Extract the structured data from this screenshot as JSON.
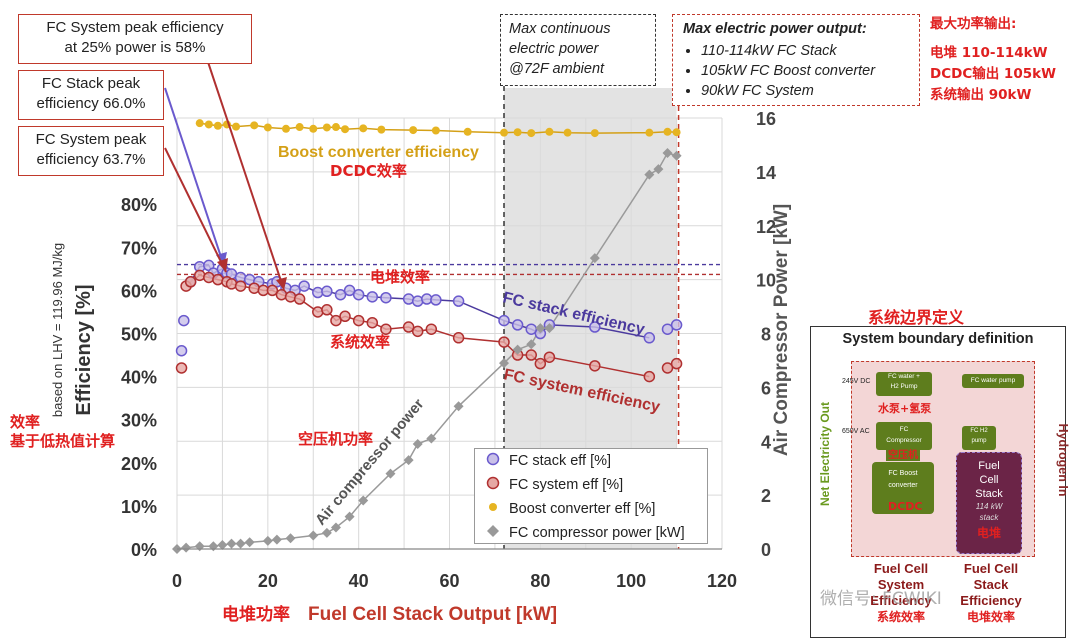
{
  "chart_data": {
    "type": "scatter",
    "xlabel": "Fuel Cell Stack Output [kW]",
    "xlabel_cn": "电堆功率",
    "ylabel_left": "Efficiency [%]",
    "ylabel_left_sub": "based on LHV = 119.96 MJ/kg",
    "ylabel_right": "Air Compressor Power [kW]",
    "xlim": [
      0,
      120
    ],
    "ylim_left": [
      0,
      100
    ],
    "ylim_right": [
      0,
      16
    ],
    "x_ticks": [
      "0",
      "20",
      "40",
      "60",
      "80",
      "100",
      "120"
    ],
    "y_left_ticks": [
      "0%",
      "10%",
      "20%",
      "30%",
      "40%",
      "50%",
      "60%",
      "70%",
      "80%"
    ],
    "y_right_ticks": [
      "0",
      "2",
      "4",
      "6",
      "8",
      "10",
      "12",
      "14",
      "16"
    ],
    "shaded_region": [
      72,
      110
    ],
    "reference_lines": [
      {
        "label": "FC Stack peak efficiency",
        "value": 66.0
      },
      {
        "label": "FC System peak efficiency",
        "value": 63.7
      }
    ],
    "series": [
      {
        "name": "FC stack eff [%]",
        "color": "#8e7cc3",
        "marker": "circle",
        "points": [
          [
            1,
            46
          ],
          [
            1.5,
            53
          ],
          [
            3,
            62
          ],
          [
            5,
            65.5
          ],
          [
            7,
            65.8
          ],
          [
            8,
            64
          ],
          [
            10,
            65
          ],
          [
            11,
            64
          ],
          [
            12,
            63.8
          ],
          [
            14,
            63
          ],
          [
            16,
            62.5
          ],
          [
            18,
            62
          ],
          [
            21,
            61.5
          ],
          [
            22,
            62
          ],
          [
            24,
            60.5
          ],
          [
            26,
            60
          ],
          [
            28,
            61
          ],
          [
            31,
            59.5
          ],
          [
            33,
            59.8
          ],
          [
            36,
            59
          ],
          [
            38,
            60
          ],
          [
            40,
            59
          ],
          [
            43,
            58.5
          ],
          [
            46,
            58.3
          ],
          [
            51,
            58
          ],
          [
            53,
            57.5
          ],
          [
            55,
            58
          ],
          [
            57,
            57.8
          ],
          [
            62,
            57.5
          ],
          [
            72,
            53
          ],
          [
            75,
            52
          ],
          [
            78,
            51
          ],
          [
            80,
            50
          ],
          [
            82,
            52
          ],
          [
            92,
            51.5
          ],
          [
            104,
            49
          ],
          [
            108,
            51
          ],
          [
            110,
            52
          ]
        ]
      },
      {
        "name": "FC system eff [%]",
        "color": "#c0504d",
        "marker": "circle",
        "points": [
          [
            1,
            42
          ],
          [
            2,
            61
          ],
          [
            3,
            62
          ],
          [
            5,
            63.5
          ],
          [
            7,
            63
          ],
          [
            9,
            62.5
          ],
          [
            11,
            62
          ],
          [
            12,
            61.5
          ],
          [
            14,
            61
          ],
          [
            17,
            60.5
          ],
          [
            19,
            60
          ],
          [
            21,
            60
          ],
          [
            23,
            59
          ],
          [
            25,
            58.5
          ],
          [
            27,
            58
          ],
          [
            31,
            55
          ],
          [
            33,
            55.5
          ],
          [
            35,
            53
          ],
          [
            37,
            54
          ],
          [
            40,
            53
          ],
          [
            43,
            52.5
          ],
          [
            46,
            51
          ],
          [
            51,
            51.5
          ],
          [
            53,
            50.5
          ],
          [
            56,
            51
          ],
          [
            62,
            49
          ],
          [
            72,
            48
          ],
          [
            75,
            45
          ],
          [
            78,
            45
          ],
          [
            80,
            43
          ],
          [
            82,
            44.5
          ],
          [
            92,
            42.5
          ],
          [
            104,
            40
          ],
          [
            108,
            42
          ],
          [
            110,
            43
          ]
        ]
      },
      {
        "name": "Boost converter eff [%]",
        "color": "#e6b422",
        "marker": "dot",
        "points": [
          [
            5,
            98.8
          ],
          [
            7,
            98.5
          ],
          [
            9,
            98.2
          ],
          [
            11,
            98.5
          ],
          [
            13,
            98
          ],
          [
            17,
            98.3
          ],
          [
            20,
            97.8
          ],
          [
            24,
            97.5
          ],
          [
            27,
            97.9
          ],
          [
            30,
            97.5
          ],
          [
            33,
            97.8
          ],
          [
            35,
            97.9
          ],
          [
            37,
            97.4
          ],
          [
            41,
            97.6
          ],
          [
            45,
            97.3
          ],
          [
            52,
            97.2
          ],
          [
            57,
            97.1
          ],
          [
            64,
            96.8
          ],
          [
            72,
            96.6
          ],
          [
            75,
            96.7
          ],
          [
            78,
            96.5
          ],
          [
            82,
            96.8
          ],
          [
            86,
            96.6
          ],
          [
            92,
            96.5
          ],
          [
            104,
            96.6
          ],
          [
            108,
            96.8
          ],
          [
            110,
            96.7
          ]
        ]
      },
      {
        "name": "FC compressor power [kW]",
        "color": "#999999",
        "marker": "diamond",
        "axis": "right",
        "points": [
          [
            0,
            0
          ],
          [
            2,
            0.05
          ],
          [
            5,
            0.1
          ],
          [
            8,
            0.1
          ],
          [
            10,
            0.15
          ],
          [
            12,
            0.2
          ],
          [
            14,
            0.2
          ],
          [
            16,
            0.25
          ],
          [
            20,
            0.3
          ],
          [
            22,
            0.35
          ],
          [
            25,
            0.4
          ],
          [
            30,
            0.5
          ],
          [
            33,
            0.6
          ],
          [
            35,
            0.8
          ],
          [
            38,
            1.2
          ],
          [
            41,
            1.8
          ],
          [
            47,
            2.8
          ],
          [
            51,
            3.3
          ],
          [
            53,
            3.9
          ],
          [
            56,
            4.1
          ],
          [
            62,
            5.3
          ],
          [
            72,
            6.9
          ],
          [
            75,
            7.4
          ],
          [
            78,
            7.6
          ],
          [
            80,
            8.2
          ],
          [
            82,
            8.2
          ],
          [
            92,
            10.8
          ],
          [
            104,
            13.9
          ],
          [
            106,
            14.1
          ],
          [
            108,
            14.7
          ],
          [
            110,
            14.6
          ]
        ]
      }
    ],
    "annotations": {
      "boost_label": "Boost converter efficiency",
      "boost_cn": "DCDC效率",
      "stack_label": "FC stack efficiency",
      "stack_cn": "电堆效率",
      "system_label": "FC system efficiency",
      "system_cn": "系统效率",
      "compressor_label": "Air compressor power",
      "compressor_cn": "空压机功率",
      "efficiency_cn_1": "效率",
      "efficiency_cn_2": "基于低热值计算"
    }
  },
  "callouts": {
    "system_25": [
      "FC System peak efficiency",
      "at 25% power is 58%"
    ],
    "stack_peak": [
      "FC Stack peak",
      "efficiency 66.0%"
    ],
    "system_peak": [
      "FC System peak",
      "efficiency 63.7%"
    ],
    "max_continuous": [
      "Max continuous",
      "electric power",
      "@72F ambient"
    ],
    "max_output_title": "Max electric power output:",
    "max_output_items": [
      "110-114kW FC Stack",
      "105kW FC Boost converter",
      "90kW FC System"
    ],
    "max_output_cn": [
      "最大功率输出:",
      "电堆 110-114kW",
      "DCDC输出 105kW",
      "系统输出 90kW"
    ]
  },
  "legend": [
    "FC stack eff [%]",
    "FC system eff [%]",
    "Boost converter eff [%]",
    "FC compressor power [kW]"
  ],
  "boundary": {
    "title_cn": "系统边界定义",
    "title": "System boundary definition",
    "net_out": "Net Electricity Out",
    "hydrogen_in": "Hydrogen In",
    "v245": "245V DC",
    "v650": "650V AC",
    "water": [
      "FC water +",
      "H2 Pump"
    ],
    "water_pump": "FC water pump",
    "water_cn": "水泵+氢泵",
    "compressor": [
      "FC",
      "Compressor"
    ],
    "compressor_cn": "空压机",
    "boost": [
      "FC Boost",
      "converter"
    ],
    "boost_cn": "DCDC",
    "h2pump": [
      "FC H2",
      "pump"
    ],
    "stack": [
      "Fuel",
      "Cell",
      "Stack"
    ],
    "stack_rating": [
      "114 kW",
      "stack"
    ],
    "stack_cn": "电堆",
    "sys_eff": [
      "Fuel Cell",
      "System",
      "Efficiency"
    ],
    "sys_eff_cn": "系统效率",
    "stack_eff": [
      "Fuel Cell",
      "Stack",
      "Efficiency"
    ],
    "stack_eff_cn": "电堆效率"
  },
  "watermark": "微信号: FCWIKI"
}
